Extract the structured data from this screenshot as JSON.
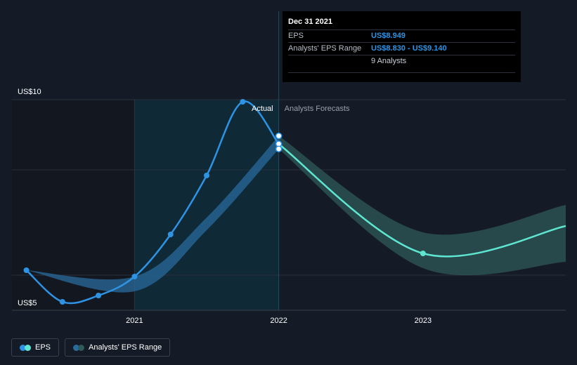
{
  "chart_data": {
    "type": "line",
    "y_axis": {
      "ylim": [
        5,
        10
      ],
      "labels": [
        "US$10",
        "US$5"
      ],
      "tick_values": [
        10,
        5
      ]
    },
    "x_axis": {
      "xlim": [
        2020.15,
        2023.99
      ],
      "ticks": [
        2021,
        2022,
        2023
      ],
      "tick_labels": [
        "2021",
        "2022",
        "2023"
      ]
    },
    "highlight_period": [
      2021.0,
      2022.0
    ],
    "period_labels": {
      "actual": "Actual",
      "forecast": "Analysts Forecasts"
    },
    "series": [
      {
        "name": "EPS",
        "color": "#2f93e4",
        "points": [
          [
            2020.25,
            5.95
          ],
          [
            2020.5,
            5.2
          ],
          [
            2020.75,
            5.35
          ],
          [
            2021.0,
            5.8
          ],
          [
            2021.25,
            6.8
          ],
          [
            2021.5,
            8.2
          ],
          [
            2021.75,
            9.95
          ],
          [
            2022.0,
            8.949
          ]
        ]
      },
      {
        "name": "EPS forecast",
        "color": "#5ee6d0",
        "points": [
          [
            2022.0,
            8.949
          ],
          [
            2023.0,
            6.35
          ],
          [
            2024.0,
            7.0
          ]
        ]
      }
    ],
    "range_series": [
      {
        "name": "Analysts' EPS Range",
        "color": "#2a6a9c",
        "upper": [
          [
            2020.25,
            5.95
          ],
          [
            2021.0,
            5.8
          ],
          [
            2021.5,
            7.2
          ],
          [
            2022.0,
            9.14
          ]
        ],
        "lower": [
          [
            2020.25,
            5.95
          ],
          [
            2021.0,
            5.45
          ],
          [
            2021.5,
            6.9
          ],
          [
            2022.0,
            8.83
          ]
        ]
      },
      {
        "name": "Analysts' EPS Range forecast",
        "color": "#2e5a58",
        "upper": [
          [
            2022.0,
            9.14
          ],
          [
            2023.0,
            6.85
          ],
          [
            2024.0,
            7.5
          ]
        ],
        "lower": [
          [
            2022.0,
            8.83
          ],
          [
            2023.0,
            6.0
          ],
          [
            2024.0,
            6.15
          ]
        ]
      }
    ],
    "markers": [
      [
        2022.0,
        9.14
      ],
      [
        2022.0,
        8.949
      ],
      [
        2022.0,
        8.83
      ]
    ]
  },
  "tooltip": {
    "date": "Dec 31 2021",
    "rows": [
      {
        "label": "EPS",
        "value": "US$8.949"
      },
      {
        "label": "Analysts' EPS Range",
        "value": "US$8.830 - US$9.140"
      },
      {
        "label": "",
        "value": "9 Analysts"
      }
    ]
  },
  "legend": [
    {
      "label": "EPS",
      "colors": [
        "#2f93e4",
        "#5ee6d0"
      ]
    },
    {
      "label": "Analysts' EPS Range",
      "colors": [
        "#2a6a9c",
        "#2e5a58"
      ]
    }
  ]
}
